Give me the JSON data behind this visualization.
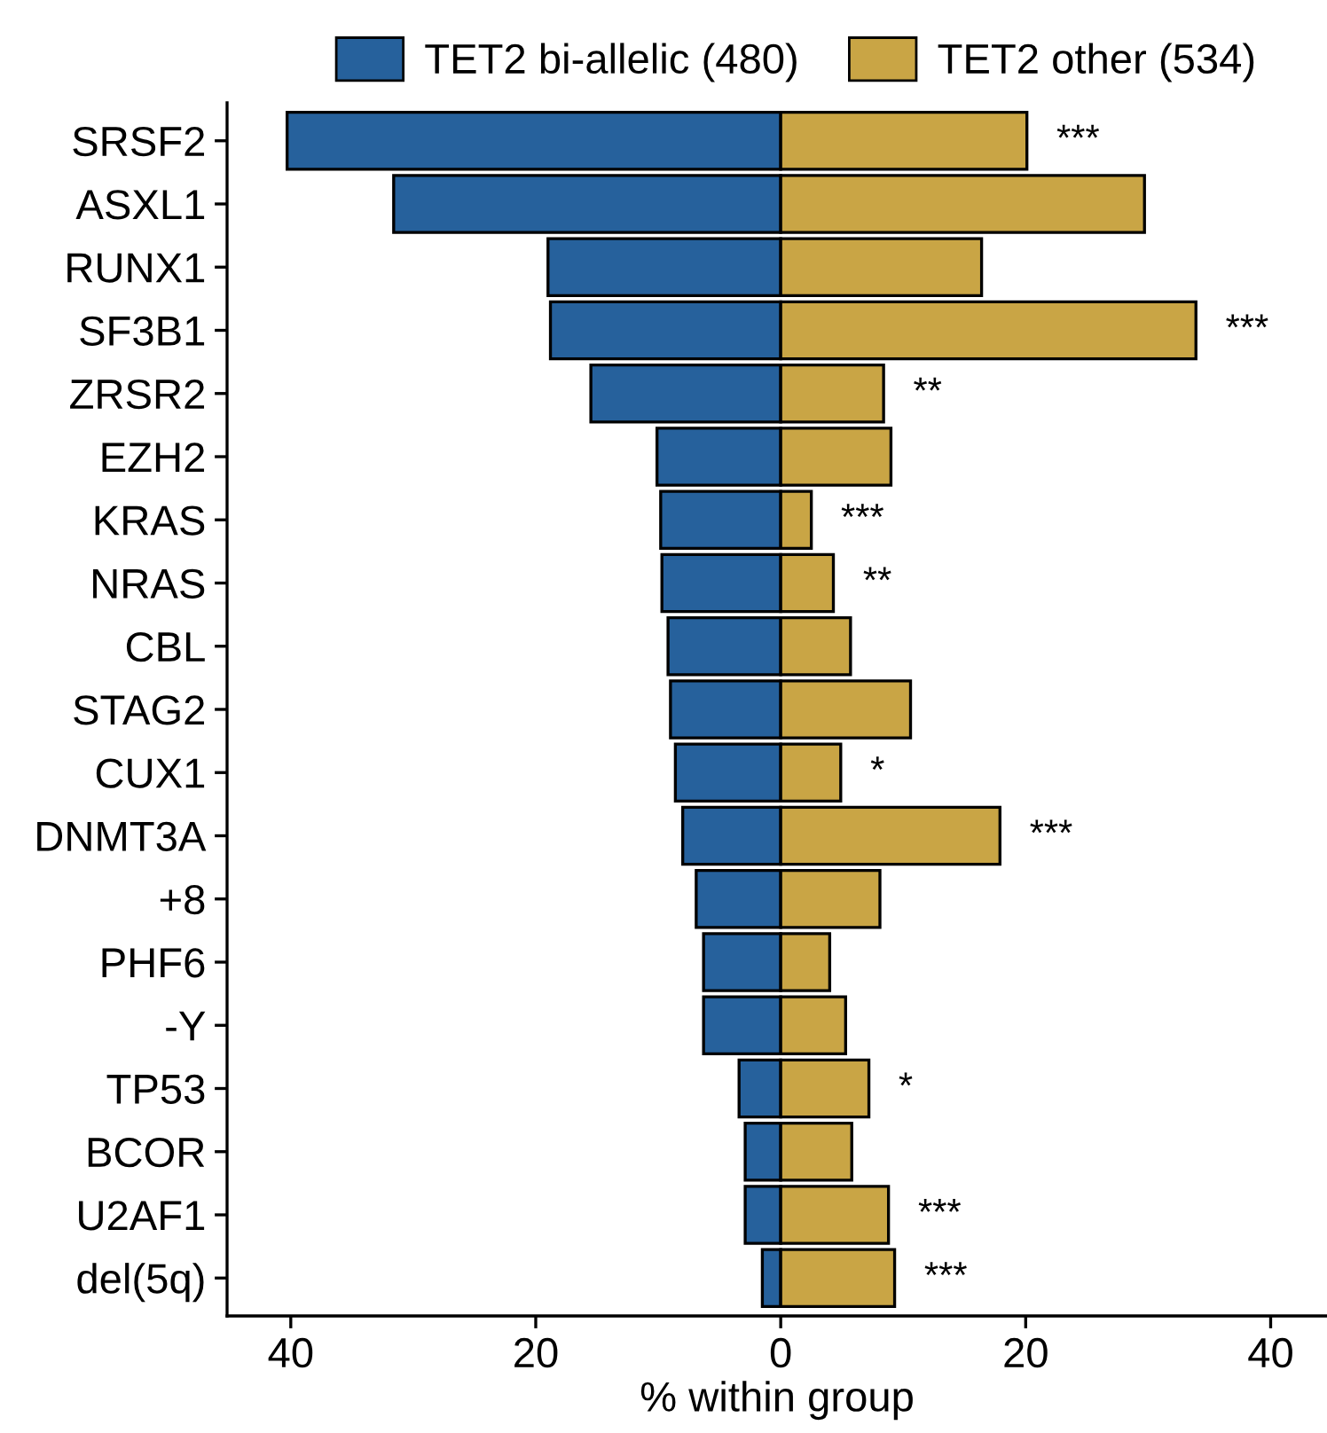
{
  "chart_data": {
    "type": "bar",
    "orientation": "horizontal",
    "stacked": true,
    "xlabel": "% within group",
    "categories": [
      "SRSF2",
      "ASXL1",
      "RUNX1",
      "SF3B1",
      "ZRSR2",
      "EZH2",
      "KRAS",
      "NRAS",
      "CBL",
      "STAG2",
      "CUX1",
      "DNMT3A",
      "+8",
      "PHF6",
      "-Y",
      "TP53",
      "BCOR",
      "U2AF1",
      "del(5q)"
    ],
    "series": [
      {
        "name": "TET2 bi-allelic (480)",
        "color": "#26619c",
        "values": [
          -40.3,
          -31.6,
          -19.0,
          -18.8,
          -15.5,
          -10.1,
          -9.8,
          -9.7,
          -9.2,
          -9.0,
          -8.6,
          -8.0,
          -6.9,
          -6.3,
          -6.3,
          -3.4,
          -2.9,
          -2.9,
          -1.5
        ]
      },
      {
        "name": "TET2 other (534)",
        "color": "#c9a545",
        "values": [
          20.1,
          29.7,
          16.4,
          33.9,
          8.4,
          9.0,
          2.5,
          4.3,
          5.7,
          10.6,
          4.9,
          17.9,
          8.1,
          4.0,
          5.3,
          7.2,
          5.8,
          8.8,
          9.3
        ]
      }
    ],
    "xlim": [
      -45.2,
      44.6
    ],
    "xticks": [
      {
        "value": -40,
        "label": "40"
      },
      {
        "value": -20,
        "label": "20"
      },
      0,
      20,
      40
    ],
    "grid": false,
    "legend": "top",
    "annotations": [
      {
        "text": "***",
        "x": 20.1,
        "y": "SRSF2"
      },
      {
        "text": "***",
        "x": 33.9,
        "y": "SF3B1"
      },
      {
        "text": "**",
        "x": 8.4,
        "y": "ZRSR2"
      },
      {
        "text": "***",
        "x": 2.5,
        "y": "KRAS"
      },
      {
        "text": "**",
        "x": 4.3,
        "y": "NRAS"
      },
      {
        "text": "*",
        "x": 4.9,
        "y": "CUX1"
      },
      {
        "text": "***",
        "x": 17.9,
        "y": "DNMT3A"
      },
      {
        "text": "*",
        "x": 7.2,
        "y": "TP53"
      },
      {
        "text": "***",
        "x": 8.8,
        "y": "U2AF1"
      },
      {
        "text": "***",
        "x": 9.3,
        "y": "del(5q)"
      }
    ]
  }
}
